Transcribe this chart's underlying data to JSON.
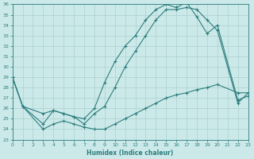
{
  "xlabel": "Humidex (Indice chaleur)",
  "xlim": [
    0,
    23
  ],
  "ylim": [
    23,
    36
  ],
  "xticks": [
    0,
    1,
    2,
    3,
    4,
    5,
    6,
    7,
    8,
    9,
    10,
    11,
    12,
    13,
    14,
    15,
    16,
    17,
    18,
    19,
    20,
    21,
    22,
    23
  ],
  "yticks": [
    23,
    24,
    25,
    26,
    27,
    28,
    29,
    30,
    31,
    32,
    33,
    34,
    35,
    36
  ],
  "bg_color": "#cce9e9",
  "line_color": "#2d7d7d",
  "grid_color": "#aad0d0",
  "line1_x": [
    0,
    1,
    3,
    4,
    5,
    6,
    7,
    8,
    9,
    10,
    11,
    12,
    13,
    14,
    15,
    16,
    17,
    18,
    19,
    20,
    22,
    23
  ],
  "line1_y": [
    29.0,
    26.2,
    25.5,
    25.8,
    25.5,
    25.2,
    25.0,
    26.0,
    28.5,
    30.5,
    32.0,
    33.0,
    34.5,
    35.5,
    36.0,
    35.7,
    36.2,
    34.8,
    33.2,
    34.0,
    26.8,
    27.2
  ],
  "line2_x": [
    0,
    1,
    3,
    4,
    5,
    6,
    7,
    8,
    9,
    10,
    11,
    12,
    13,
    14,
    15,
    16,
    17,
    18,
    19,
    20,
    22,
    23
  ],
  "line2_y": [
    29.0,
    26.2,
    24.5,
    25.8,
    25.5,
    25.2,
    24.5,
    25.5,
    26.2,
    28.0,
    30.0,
    31.5,
    33.0,
    34.5,
    35.5,
    35.5,
    35.7,
    35.5,
    34.5,
    33.5,
    26.5,
    27.5
  ],
  "line3_x": [
    0,
    1,
    3,
    4,
    5,
    6,
    7,
    8,
    9,
    10,
    11,
    12,
    13,
    14,
    15,
    16,
    17,
    18,
    19,
    20,
    22,
    23
  ],
  "line3_y": [
    29.0,
    26.2,
    24.0,
    24.5,
    24.8,
    24.5,
    24.2,
    24.0,
    24.0,
    24.5,
    25.0,
    25.5,
    26.0,
    26.5,
    27.0,
    27.3,
    27.5,
    27.8,
    28.0,
    28.3,
    27.5,
    27.5
  ]
}
